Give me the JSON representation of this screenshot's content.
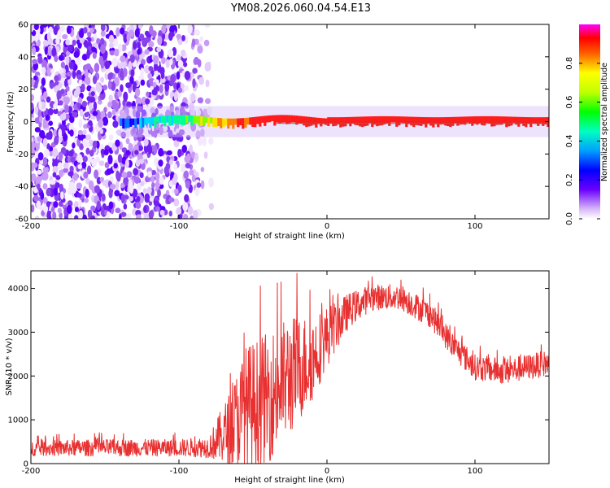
{
  "title": "YM08.2026.060.04.54.E13",
  "chart_data": [
    {
      "type": "heatmap",
      "name": "spectrogram",
      "xlabel": "Height of straight line (km)",
      "ylabel": "Frequency (Hz)",
      "xlim": [
        -200,
        150
      ],
      "ylim": [
        -60,
        60
      ],
      "xticks": [
        -200,
        -100,
        0,
        100
      ],
      "yticks": [
        -60,
        -40,
        -20,
        0,
        20,
        40,
        60
      ],
      "colorbar": {
        "label": "Normalized spectral amplitude",
        "range": [
          0,
          1
        ],
        "ticks": [
          0.0,
          0.2,
          0.4,
          0.6,
          0.8
        ]
      },
      "features": {
        "noise_region_x": [
          -200,
          -78
        ],
        "signal_band_hz": [
          -3,
          3
        ],
        "signal_start_x": -140
      }
    },
    {
      "type": "line",
      "name": "snr",
      "xlabel": "Height of straight line (km)",
      "ylabel": "SNR (10 * v/v)",
      "xlim": [
        -200,
        150
      ],
      "ylim": [
        0,
        4400
      ],
      "xticks": [
        -200,
        -100,
        0,
        100
      ],
      "yticks": [
        0,
        1000,
        2000,
        3000,
        4000
      ],
      "color": "#e83030",
      "envelope": [
        {
          "x": -200,
          "mean": 350,
          "amp": 180
        },
        {
          "x": -150,
          "mean": 360,
          "amp": 200
        },
        {
          "x": -100,
          "mean": 360,
          "amp": 200
        },
        {
          "x": -80,
          "mean": 380,
          "amp": 250
        },
        {
          "x": -65,
          "mean": 800,
          "amp": 900
        },
        {
          "x": -55,
          "mean": 1300,
          "amp": 1400
        },
        {
          "x": -40,
          "mean": 1500,
          "amp": 1500
        },
        {
          "x": -25,
          "mean": 2000,
          "amp": 1400
        },
        {
          "x": -10,
          "mean": 2400,
          "amp": 1000
        },
        {
          "x": 0,
          "mean": 2900,
          "amp": 700
        },
        {
          "x": 15,
          "mean": 3500,
          "amp": 400
        },
        {
          "x": 30,
          "mean": 3800,
          "amp": 300
        },
        {
          "x": 50,
          "mean": 3800,
          "amp": 300
        },
        {
          "x": 70,
          "mean": 3400,
          "amp": 300
        },
        {
          "x": 85,
          "mean": 2700,
          "amp": 300
        },
        {
          "x": 100,
          "mean": 2200,
          "amp": 300
        },
        {
          "x": 120,
          "mean": 2100,
          "amp": 300
        },
        {
          "x": 150,
          "mean": 2300,
          "amp": 300
        }
      ]
    }
  ]
}
